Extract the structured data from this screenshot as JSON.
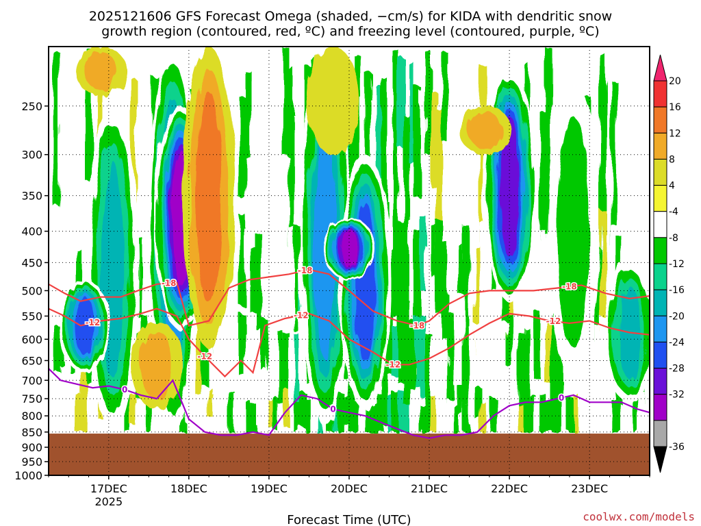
{
  "chart_data": {
    "type": "heatmap",
    "title_line1": "2025121606 GFS Forecast Omega (shaded, −cm/s) for KIDA with dendritic snow",
    "title_line2": "growth region (contoured, red, ºC) and freezing level (contoured, purple, ºC)",
    "xlabel": "Forecast Time (UTC)",
    "x_ticks": [
      "17DEC",
      "18DEC",
      "19DEC",
      "20DEC",
      "21DEC",
      "22DEC",
      "23DEC"
    ],
    "x_tick_sub": "2025",
    "y_ticks": [
      250,
      300,
      350,
      400,
      450,
      500,
      550,
      600,
      650,
      700,
      750,
      800,
      850,
      900,
      950,
      1000
    ],
    "ylim": [
      1000,
      200
    ],
    "y_scale": "log-pressure",
    "grid": true,
    "x_range_days": [
      16.25,
      23.75
    ],
    "colorbar": {
      "levels": [
        20,
        16,
        12,
        8,
        4,
        -4,
        -8,
        -12,
        -16,
        -20,
        -24,
        -28,
        -32,
        -36
      ],
      "colors": [
        "#f0246e",
        "#f03232",
        "#f07828",
        "#f0aa28",
        "#dcdc28",
        "#f5f532",
        "#ffffff",
        "#00c800",
        "#0ad28c",
        "#00b4b4",
        "#1e96f0",
        "#2050f0",
        "#6a10d8",
        "#a000c8",
        "#a8a8a8",
        "#000000"
      ]
    },
    "omega_features": [
      {
        "day": 17.05,
        "p_top": 250,
        "p_bot": 850,
        "value": -18
      },
      {
        "day": 16.7,
        "p_top": 480,
        "p_bot": 680,
        "value": -28
      },
      {
        "day": 17.8,
        "p_top": 200,
        "p_bot": 850,
        "value": -24
      },
      {
        "day": 17.9,
        "p_top": 250,
        "p_bot": 580,
        "value": -36
      },
      {
        "day": 18.25,
        "p_top": 200,
        "p_bot": 620,
        "value": 14
      },
      {
        "day": 17.6,
        "p_top": 560,
        "p_bot": 780,
        "value": 12
      },
      {
        "day": 19.7,
        "p_top": 210,
        "p_bot": 830,
        "value": -22
      },
      {
        "day": 20.2,
        "p_top": 300,
        "p_bot": 780,
        "value": -28
      },
      {
        "day": 20.0,
        "p_top": 380,
        "p_bot": 480,
        "value": -36
      },
      {
        "day": 22.0,
        "p_top": 220,
        "p_bot": 520,
        "value": -30
      },
      {
        "day": 22.8,
        "p_top": 230,
        "p_bot": 700,
        "value": -12
      },
      {
        "day": 23.5,
        "p_top": 450,
        "p_bot": 760,
        "value": -18
      },
      {
        "day": 19.8,
        "p_top": 200,
        "p_bot": 300,
        "value": 8
      },
      {
        "day": 21.7,
        "p_top": 250,
        "p_bot": 300,
        "value": 10
      },
      {
        "day": 16.9,
        "p_top": 200,
        "p_bot": 240,
        "value": 10
      }
    ],
    "contours_red": [
      {
        "label": "-18",
        "x": [
          16.25,
          16.45,
          16.65,
          16.9,
          17.15,
          17.4,
          17.6,
          17.85,
          18.0,
          18.25,
          18.5,
          18.75,
          19.0,
          19.25,
          19.5,
          19.75,
          20.0,
          20.3,
          20.6,
          20.85,
          21.0,
          21.25,
          21.5,
          21.75,
          22.0,
          22.3,
          22.6,
          22.9,
          23.2,
          23.5,
          23.75
        ],
        "p": [
          488,
          505,
          520,
          512,
          512,
          498,
          488,
          485,
          570,
          560,
          495,
          480,
          475,
          470,
          462,
          470,
          500,
          540,
          560,
          570,
          560,
          525,
          505,
          500,
          500,
          500,
          495,
          490,
          505,
          515,
          510
        ],
        "labels_at": [
          17.75,
          19.45,
          20.85,
          22.75
        ]
      },
      {
        "label": "-12",
        "x": [
          16.25,
          16.45,
          16.65,
          16.9,
          17.15,
          17.4,
          17.6,
          17.85,
          18.0,
          18.2,
          18.45,
          18.65,
          18.8,
          18.95,
          19.2,
          19.5,
          19.75,
          20.0,
          20.3,
          20.55,
          20.75,
          21.0,
          21.25,
          21.5,
          21.75,
          22.0,
          22.25,
          22.5,
          22.75,
          23.0,
          23.25,
          23.5,
          23.75
        ],
        "p": [
          535,
          550,
          570,
          560,
          555,
          545,
          535,
          550,
          600,
          640,
          690,
          650,
          680,
          570,
          555,
          545,
          560,
          600,
          630,
          660,
          660,
          645,
          620,
          590,
          565,
          545,
          550,
          560,
          565,
          560,
          575,
          585,
          590
        ],
        "labels_at": [
          16.8,
          18.2,
          19.4,
          20.55,
          22.55
        ]
      }
    ],
    "contour_purple": {
      "label": "0",
      "x": [
        16.25,
        16.4,
        16.6,
        16.8,
        17.0,
        17.2,
        17.4,
        17.6,
        17.8,
        18.0,
        18.2,
        18.4,
        18.6,
        18.8,
        19.0,
        19.2,
        19.4,
        19.6,
        19.8,
        20.0,
        20.2,
        20.4,
        20.6,
        20.8,
        21.0,
        21.2,
        21.4,
        21.6,
        21.8,
        22.0,
        22.2,
        22.4,
        22.6,
        22.8,
        23.0,
        23.2,
        23.4,
        23.6,
        23.75
      ],
      "p": [
        670,
        700,
        710,
        720,
        715,
        725,
        740,
        750,
        700,
        810,
        850,
        860,
        860,
        850,
        860,
        790,
        740,
        750,
        780,
        790,
        800,
        820,
        840,
        860,
        870,
        860,
        860,
        850,
        800,
        770,
        760,
        760,
        750,
        740,
        760,
        760,
        760,
        780,
        790
      ],
      "labels_at": [
        17.2,
        19.8,
        22.65
      ]
    },
    "terrain_pressure": 855,
    "terrain_color": "#a0522d"
  },
  "credit": "coolwx.com/models"
}
